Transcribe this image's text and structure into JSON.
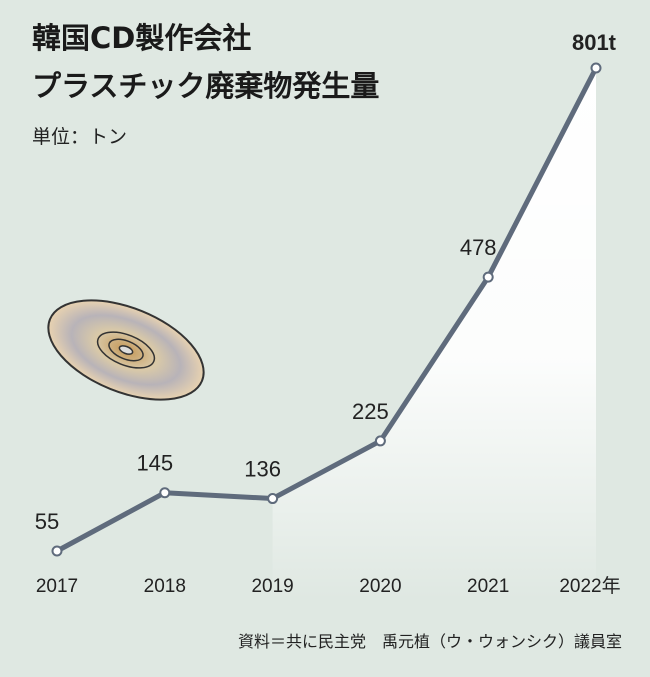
{
  "chart_data": {
    "type": "line",
    "title": [
      "韓国CD製作会社",
      "プラスチック廃棄物発生量"
    ],
    "subtitle": "単位：トン",
    "categories": [
      "2017",
      "2018",
      "2019",
      "2020",
      "2021",
      "2022年"
    ],
    "values": [
      55,
      145,
      136,
      225,
      478,
      801
    ],
    "value_labels": [
      "55",
      "145",
      "136",
      "225",
      "478",
      "801t"
    ],
    "color": "#5f6b7c",
    "source": "資料＝共に民主党　禹元植（ウ・ウォンシク）議員室"
  }
}
